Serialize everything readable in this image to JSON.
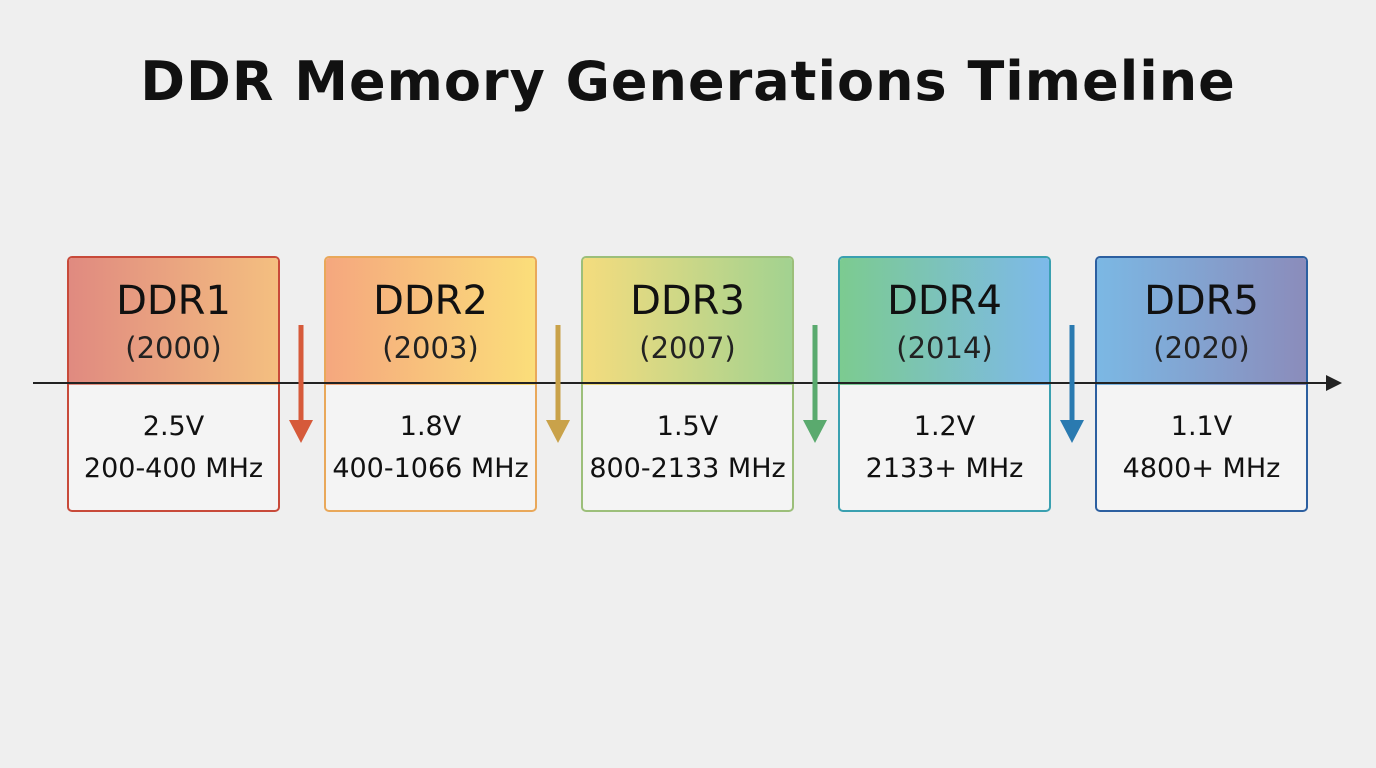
{
  "title": "DDR Memory Generations Timeline",
  "generations": [
    {
      "name": "DDR1",
      "year": "(2000)",
      "voltage": "2.5V",
      "speed": "200-400 MHz"
    },
    {
      "name": "DDR2",
      "year": "(2003)",
      "voltage": "1.8V",
      "speed": "400-1066 MHz"
    },
    {
      "name": "DDR3",
      "year": "(2007)",
      "voltage": "1.5V",
      "speed": "800-2133 MHz"
    },
    {
      "name": "DDR4",
      "year": "(2014)",
      "voltage": "1.2V",
      "speed": "2133+ MHz"
    },
    {
      "name": "DDR5",
      "year": "(2020)",
      "voltage": "1.1V",
      "speed": "4800+ MHz"
    }
  ]
}
